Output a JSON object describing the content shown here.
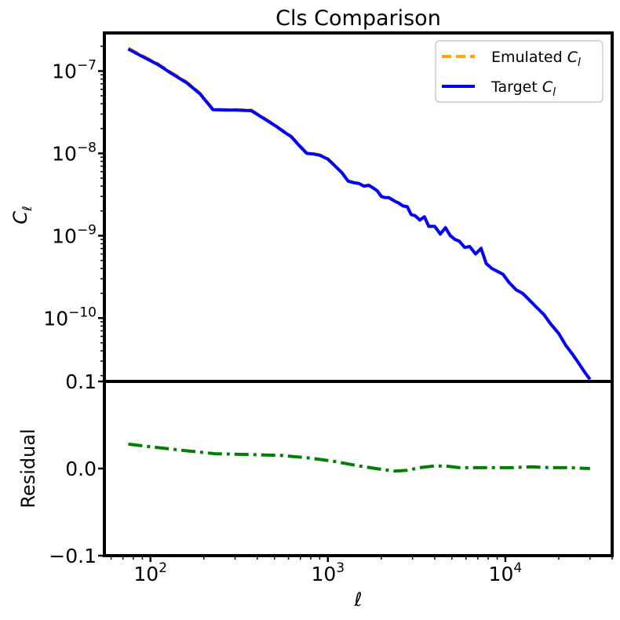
{
  "chart_data": [
    {
      "type": "line",
      "title": "Cls Comparison",
      "xlabel": "",
      "ylabel": "C_ℓ",
      "xscale": "log",
      "yscale": "log",
      "xlim": [
        55,
        40000
      ],
      "ylim": [
        1.7e-11,
        2.9e-07
      ],
      "yticks": [
        {
          "value": 1e-07,
          "base": "10",
          "exp": "−7"
        },
        {
          "value": 1e-08,
          "base": "10",
          "exp": "−8"
        },
        {
          "value": 1e-09,
          "base": "10",
          "exp": "−9"
        },
        {
          "value": 1e-10,
          "base": "10",
          "exp": "−10"
        }
      ],
      "legend_placement": "top-right",
      "legend": [
        {
          "label": "Emulated C",
          "subscript": "l",
          "color": "#ffa500",
          "style": "dashed"
        },
        {
          "label": "Target C",
          "subscript": "l",
          "color": "#0000ff",
          "style": "solid"
        }
      ],
      "series": [
        {
          "name": "Target C_l",
          "color": "#0000ff",
          "x": [
            75,
            90,
            110,
            130,
            160,
            190,
            225,
            260,
            300,
            370,
            430,
            500,
            560,
            620,
            700,
            760,
            830,
            900,
            1000,
            1100,
            1200,
            1300,
            1400,
            1500,
            1600,
            1700,
            1800,
            1900,
            2000,
            2100,
            2200,
            2300,
            2400,
            2500,
            2650,
            2800,
            2950,
            3100,
            3300,
            3500,
            3700,
            4000,
            4300,
            4600,
            4900,
            5200,
            5500,
            5900,
            6300,
            6800,
            7300,
            7800,
            8400,
            9000,
            9700,
            10500,
            11500,
            12500,
            13500,
            15000,
            16500,
            18000,
            20000,
            22000,
            24000,
            26000,
            28000,
            30000
          ],
          "y": [
            1.85e-07,
            1.5e-07,
            1.2e-07,
            9.5e-08,
            7.2e-08,
            5.3e-08,
            3.4e-08,
            3.35e-08,
            3.35e-08,
            3.3e-08,
            2.7e-08,
            2.2e-08,
            1.85e-08,
            1.6e-08,
            1.2e-08,
            1e-08,
            9.8e-09,
            9.5e-09,
            8.5e-09,
            7e-09,
            5.8e-09,
            4.6e-09,
            4.4e-09,
            4.3e-09,
            4e-09,
            4.1e-09,
            3.8e-09,
            3.5e-09,
            3e-09,
            2.9e-09,
            2.9e-09,
            2.75e-09,
            2.6e-09,
            2.5e-09,
            2.3e-09,
            2.25e-09,
            1.8e-09,
            1.75e-09,
            1.55e-09,
            1.7e-09,
            1.3e-09,
            1.3e-09,
            1.05e-09,
            1.25e-09,
            1e-09,
            9e-10,
            8.6e-10,
            7.2e-10,
            7.4e-10,
            6e-10,
            7e-10,
            4.6e-10,
            4e-10,
            3.7e-10,
            3.4e-10,
            2.7e-10,
            2.2e-10,
            2e-10,
            1.7e-10,
            1.35e-10,
            1.1e-10,
            8.5e-11,
            6.5e-11,
            4.6e-11,
            3.6e-11,
            2.8e-11,
            2.2e-11,
            1.8e-11
          ]
        },
        {
          "name": "Emulated C_l",
          "color": "#ffa500",
          "x": [
            75,
            90,
            110,
            130,
            160,
            190,
            225,
            260,
            300,
            370,
            430,
            500,
            560,
            620,
            700,
            760,
            830,
            900,
            1000,
            1100,
            1200,
            1300,
            1400,
            1500,
            1600,
            1700,
            1800,
            1900,
            2000,
            2100,
            2200,
            2300,
            2400,
            2500,
            2650,
            2800,
            2950,
            3100,
            3300,
            3500,
            3700,
            4000,
            4300,
            4600,
            4900,
            5200,
            5500,
            5900,
            6300,
            6800,
            7300,
            7800,
            8400,
            9000,
            9700,
            10500,
            11500,
            12500,
            13500,
            15000,
            16500,
            18000,
            20000,
            22000,
            24000,
            26000,
            28000,
            30000
          ],
          "y": [
            1.9e-07,
            1.54e-07,
            1.23e-07,
            9.75e-08,
            7.35e-08,
            5.4e-08,
            3.46e-08,
            3.4e-08,
            3.4e-08,
            3.35e-08,
            2.74e-08,
            2.23e-08,
            1.88e-08,
            1.62e-08,
            1.22e-08,
            1.01e-08,
            9.9e-09,
            9.6e-09,
            8.6e-09,
            7.07e-09,
            5.86e-09,
            4.64e-09,
            4.43e-09,
            4.33e-09,
            4.02e-09,
            4.11e-09,
            3.81e-09,
            3.5e-09,
            3e-09,
            2.9e-09,
            2.9e-09,
            2.75e-09,
            2.6e-09,
            2.5e-09,
            2.3e-09,
            2.25e-09,
            1.8e-09,
            1.75e-09,
            1.55e-09,
            1.7e-09,
            1.3e-09,
            1.3e-09,
            1.05e-09,
            1.25e-09,
            1e-09,
            9e-10,
            8.6e-10,
            7.2e-10,
            7.4e-10,
            6e-10,
            7e-10,
            4.6e-10,
            4e-10,
            3.7e-10,
            3.4e-10,
            2.7e-10,
            2.2e-10,
            2e-10,
            1.7e-10,
            1.35e-10,
            1.1e-10,
            8.5e-11,
            6.5e-11,
            4.6e-11,
            3.6e-11,
            2.8e-11,
            2.2e-11,
            1.8e-11
          ]
        }
      ]
    },
    {
      "type": "line",
      "title": "",
      "xlabel": "ℓ",
      "ylabel": "Residual",
      "xscale": "log",
      "xlim": [
        55,
        40000
      ],
      "ylim": [
        -0.1,
        0.1
      ],
      "xticks": [
        {
          "value": 100,
          "base": "10",
          "exp": "2"
        },
        {
          "value": 1000,
          "base": "10",
          "exp": "3"
        },
        {
          "value": 10000,
          "base": "10",
          "exp": "4"
        }
      ],
      "yticks": [
        {
          "value": 0.1,
          "label": "0.1"
        },
        {
          "value": 0.0,
          "label": "0.0"
        },
        {
          "value": -0.1,
          "label": "−0.1"
        }
      ],
      "series": [
        {
          "color": "#008000",
          "style": "dashdot",
          "x": [
            75,
            100,
            150,
            230,
            370,
            550,
            800,
            1100,
            1500,
            2000,
            2400,
            2800,
            3300,
            4000,
            4600,
            5500,
            7000,
            9000,
            11000,
            14000,
            18000,
            23000,
            30000
          ],
          "y": [
            0.028,
            0.025,
            0.021,
            0.017,
            0.016,
            0.015,
            0.012,
            0.008,
            0.003,
            -0.001,
            -0.003,
            -0.002,
            0.001,
            0.003,
            0.003,
            0.001,
            0.001,
            0.001,
            0.001,
            0.002,
            0.001,
            0.001,
            0.0
          ]
        }
      ]
    }
  ]
}
